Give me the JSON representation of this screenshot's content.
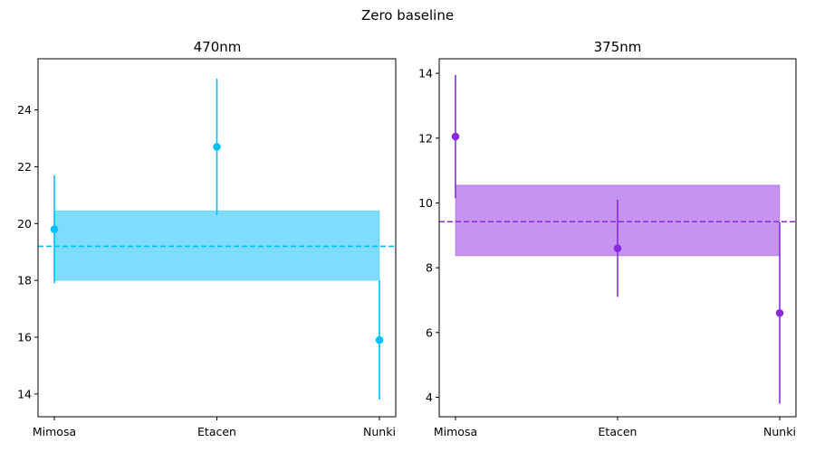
{
  "chart_data": {
    "title": "Zero baseline",
    "panels": [
      {
        "type": "scatter",
        "title": "470nm",
        "color": "#00bfff",
        "band_color": "#7fdcfd",
        "categories": [
          "Mimosa",
          "Etacen",
          "Nunki"
        ],
        "values": [
          19.8,
          22.7,
          15.9
        ],
        "errors": [
          1.9,
          2.4,
          2.1
        ],
        "mean_line": 19.2,
        "band": [
          18.0,
          20.45
        ],
        "ylim": [
          13.2,
          25.8
        ],
        "yticks": [
          14,
          16,
          18,
          20,
          22,
          24
        ],
        "xlabel": "",
        "ylabel": "",
        "grid": false
      },
      {
        "type": "scatter",
        "title": "375nm",
        "color": "#8a2be2",
        "band_color": "#c494f0",
        "categories": [
          "Mimosa",
          "Etacen",
          "Nunki"
        ],
        "values": [
          12.05,
          8.6,
          6.6
        ],
        "errors": [
          1.9,
          1.5,
          2.8
        ],
        "mean_line": 9.42,
        "band": [
          8.37,
          10.55
        ],
        "ylim": [
          3.4,
          14.45
        ],
        "yticks": [
          4,
          6,
          8,
          10,
          12,
          14
        ],
        "xlabel": "",
        "ylabel": "",
        "grid": false
      }
    ]
  }
}
